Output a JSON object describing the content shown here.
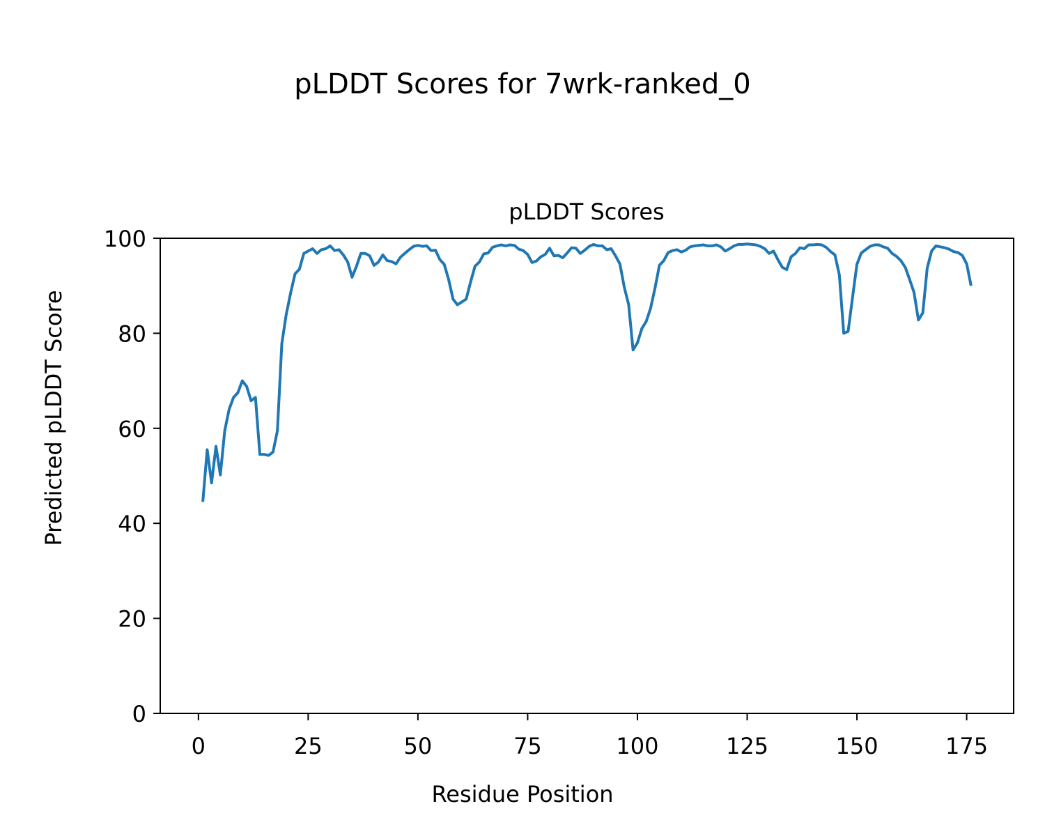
{
  "figure_title": "pLDDT Scores for 7wrk-ranked_0",
  "chart_data": {
    "type": "line",
    "title": "pLDDT Scores",
    "xlabel": "Residue Position",
    "ylabel": "Predicted pLDDT Score",
    "xlim": [
      -8.7,
      185.7
    ],
    "ylim": [
      0,
      100
    ],
    "xticks": [
      0,
      25,
      50,
      75,
      100,
      125,
      150,
      175
    ],
    "yticks": [
      0,
      20,
      40,
      60,
      80,
      100
    ],
    "grid": false,
    "series": [
      {
        "color": "#1f77b4",
        "x": [
          1,
          2,
          3,
          4,
          5,
          6,
          7,
          8,
          9,
          10,
          11,
          12,
          13,
          14,
          15,
          16,
          17,
          18,
          19,
          20,
          21,
          22,
          23,
          24,
          25,
          26,
          27,
          28,
          29,
          30,
          31,
          32,
          33,
          34,
          35,
          36,
          37,
          38,
          39,
          40,
          41,
          42,
          43,
          44,
          45,
          46,
          47,
          48,
          49,
          50,
          51,
          52,
          53,
          54,
          55,
          56,
          57,
          58,
          59,
          60,
          61,
          62,
          63,
          64,
          65,
          66,
          67,
          68,
          69,
          70,
          71,
          72,
          73,
          74,
          75,
          76,
          77,
          78,
          79,
          80,
          81,
          82,
          83,
          84,
          85,
          86,
          87,
          88,
          89,
          90,
          91,
          92,
          93,
          94,
          95,
          96,
          97,
          98,
          99,
          100,
          101,
          102,
          103,
          104,
          105,
          106,
          107,
          108,
          109,
          110,
          111,
          112,
          113,
          114,
          115,
          116,
          117,
          118,
          119,
          120,
          121,
          122,
          123,
          124,
          125,
          126,
          127,
          128,
          129,
          130,
          131,
          132,
          133,
          134,
          135,
          136,
          137,
          138,
          139,
          140,
          141,
          142,
          143,
          144,
          145,
          146,
          147,
          148,
          149,
          150,
          151,
          152,
          153,
          154,
          155,
          156,
          157,
          158,
          159,
          160,
          161,
          162,
          163,
          164,
          165,
          166,
          167,
          168,
          169,
          170,
          171,
          172,
          173,
          174,
          175,
          176
        ],
        "y": [
          44.5,
          55.5,
          48.5,
          56.2,
          50.2,
          59.5,
          64.0,
          66.5,
          67.5,
          70.0,
          68.8,
          65.8,
          66.5,
          54.5,
          54.5,
          54.3,
          55.0,
          59.5,
          77.8,
          84.0,
          88.5,
          92.5,
          93.5,
          96.8,
          97.3,
          97.8,
          96.8,
          97.6,
          97.8,
          98.4,
          97.4,
          97.6,
          96.5,
          95.0,
          91.8,
          94.1,
          96.8,
          96.8,
          96.3,
          94.3,
          95.0,
          96.5,
          95.3,
          95.1,
          94.6,
          96.0,
          96.8,
          97.6,
          98.3,
          98.5,
          98.3,
          98.4,
          97.4,
          97.5,
          95.5,
          94.5,
          91.3,
          87.2,
          86.0,
          86.6,
          87.2,
          90.8,
          94.1,
          95.0,
          96.7,
          96.9,
          98.1,
          98.4,
          98.6,
          98.4,
          98.6,
          98.5,
          97.7,
          97.4,
          96.6,
          94.9,
          95.2,
          96.1,
          96.6,
          97.9,
          96.3,
          96.4,
          95.9,
          96.9,
          98.0,
          97.9,
          96.8,
          97.5,
          98.3,
          98.7,
          98.4,
          98.4,
          97.6,
          97.8,
          96.3,
          94.6,
          89.7,
          86.0,
          76.5,
          78.0,
          81.0,
          82.5,
          85.3,
          89.5,
          94.3,
          95.3,
          97.0,
          97.4,
          97.6,
          97.1,
          97.5,
          98.2,
          98.4,
          98.5,
          98.6,
          98.4,
          98.4,
          98.6,
          98.2,
          97.3,
          97.8,
          98.4,
          98.7,
          98.7,
          98.8,
          98.7,
          98.6,
          98.3,
          97.8,
          96.8,
          97.3,
          95.5,
          93.9,
          93.4,
          96.1,
          96.8,
          98.0,
          97.8,
          98.6,
          98.6,
          98.7,
          98.6,
          98.1,
          97.2,
          96.5,
          92.3,
          80.0,
          80.4,
          87.5,
          94.5,
          96.9,
          97.6,
          98.3,
          98.6,
          98.6,
          98.2,
          97.9,
          96.8,
          96.2,
          95.3,
          93.9,
          91.3,
          88.6,
          82.8,
          84.3,
          93.7,
          97.3,
          98.4,
          98.2,
          98.0,
          97.7,
          97.2,
          97.0,
          96.4,
          94.6,
          90.0
        ]
      }
    ]
  }
}
